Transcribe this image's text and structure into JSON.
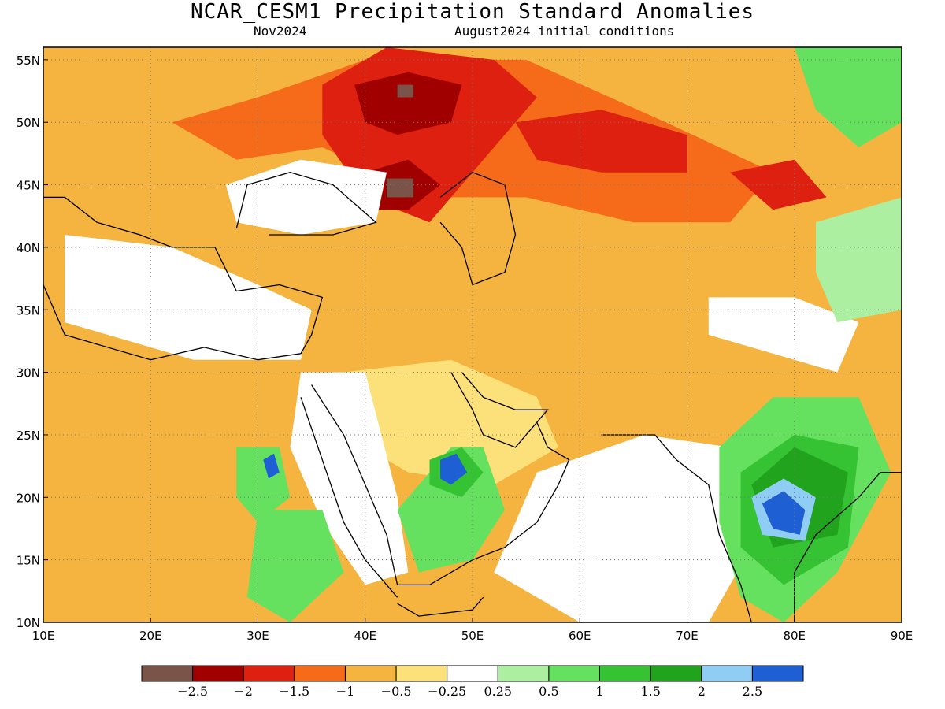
{
  "title": "NCAR_CESM1 Precipitation Standard Anomalies",
  "subtitle_left": "Nov2024",
  "subtitle_right": "August2024 initial conditions",
  "map": {
    "lon_range": [
      10,
      90
    ],
    "lat_range": [
      10,
      56
    ],
    "lon_ticks": [
      {
        "value": 10,
        "label": "10E"
      },
      {
        "value": 20,
        "label": "20E"
      },
      {
        "value": 30,
        "label": "30E"
      },
      {
        "value": 40,
        "label": "40E"
      },
      {
        "value": 50,
        "label": "50E"
      },
      {
        "value": 60,
        "label": "60E"
      },
      {
        "value": 70,
        "label": "70E"
      },
      {
        "value": 80,
        "label": "80E"
      },
      {
        "value": 90,
        "label": "90E"
      }
    ],
    "lat_ticks": [
      {
        "value": 10,
        "label": "10N"
      },
      {
        "value": 15,
        "label": "15N"
      },
      {
        "value": 20,
        "label": "20N"
      },
      {
        "value": 25,
        "label": "25N"
      },
      {
        "value": 30,
        "label": "30N"
      },
      {
        "value": 35,
        "label": "35N"
      },
      {
        "value": 40,
        "label": "40N"
      },
      {
        "value": 45,
        "label": "45N"
      },
      {
        "value": 50,
        "label": "50N"
      },
      {
        "value": 55,
        "label": "55N"
      }
    ],
    "gridlines": "dotted"
  },
  "anomaly_regions": [
    {
      "name": "northern-dry-band",
      "class": "-1 to -0.5",
      "color": "#f5b440",
      "polygon": [
        [
          10,
          44
        ],
        [
          20,
          47
        ],
        [
          30,
          49
        ],
        [
          40,
          50
        ],
        [
          55,
          50
        ],
        [
          70,
          52
        ],
        [
          82,
          52
        ],
        [
          84,
          44
        ],
        [
          78,
          39
        ],
        [
          70,
          36
        ],
        [
          60,
          33
        ],
        [
          50,
          35
        ],
        [
          42,
          33
        ],
        [
          34,
          34
        ],
        [
          30,
          38
        ],
        [
          24,
          40
        ],
        [
          16,
          42
        ],
        [
          10,
          40
        ]
      ]
    },
    {
      "name": "north-africa-dry",
      "class": "-1 to -0.5",
      "color": "#f5b440",
      "polygon": [
        [
          10,
          32
        ],
        [
          22,
          31
        ],
        [
          32,
          31
        ],
        [
          36,
          27
        ],
        [
          34,
          18
        ],
        [
          30,
          14
        ],
        [
          22,
          12
        ],
        [
          10,
          12
        ]
      ]
    },
    {
      "name": "arabia-dry",
      "class": "-0.5 to -0.25",
      "color": "#fce07a",
      "polygon": [
        [
          38,
          30
        ],
        [
          48,
          31
        ],
        [
          56,
          28
        ],
        [
          58,
          24
        ],
        [
          52,
          21
        ],
        [
          44,
          22
        ],
        [
          40,
          24
        ]
      ]
    },
    {
      "name": "europe-moderate-dry",
      "class": "-1.5 to -1",
      "color": "#f56b1a",
      "polygon": [
        [
          22,
          50
        ],
        [
          30,
          52
        ],
        [
          40,
          55
        ],
        [
          55,
          55
        ],
        [
          68,
          50
        ],
        [
          78,
          46
        ],
        [
          74,
          42
        ],
        [
          65,
          42
        ],
        [
          55,
          44
        ],
        [
          46,
          44
        ],
        [
          36,
          48
        ],
        [
          28,
          47
        ]
      ]
    },
    {
      "name": "russia-strong-dry",
      "class": "-2 to -1.5",
      "color": "#dd2010",
      "polygon": [
        [
          36,
          53
        ],
        [
          42,
          56
        ],
        [
          52,
          55
        ],
        [
          56,
          52
        ],
        [
          52,
          48
        ],
        [
          46,
          42
        ],
        [
          40,
          44
        ],
        [
          36,
          49
        ]
      ]
    },
    {
      "name": "kazakhstan-strong-dry",
      "class": "-2 to -1.5",
      "color": "#dd2010",
      "polygon": [
        [
          54,
          50
        ],
        [
          62,
          51
        ],
        [
          70,
          49
        ],
        [
          70,
          46
        ],
        [
          62,
          46
        ],
        [
          56,
          47
        ]
      ]
    },
    {
      "name": "central-asia-strong-dry",
      "class": "-2 to -1.5",
      "color": "#dd2010",
      "polygon": [
        [
          74,
          46
        ],
        [
          80,
          47
        ],
        [
          83,
          44
        ],
        [
          78,
          43
        ]
      ]
    },
    {
      "name": "russia-very-dry-core",
      "class": "-2.5 to -2",
      "color": "#a00000",
      "polygon": [
        [
          39,
          53
        ],
        [
          44,
          54
        ],
        [
          49,
          53
        ],
        [
          48,
          50
        ],
        [
          43,
          49
        ],
        [
          40,
          50
        ]
      ]
    },
    {
      "name": "caucasus-very-dry",
      "class": "-2.5 to -2",
      "color": "#a00000",
      "polygon": [
        [
          40,
          46
        ],
        [
          44,
          47
        ],
        [
          47,
          45
        ],
        [
          44,
          43
        ],
        [
          41,
          43
        ]
      ]
    },
    {
      "name": "extreme-dry-spot-north",
      "class": "< -2.5",
      "color": "#7a5448",
      "polygon": [
        [
          43,
          53
        ],
        [
          44.5,
          53
        ],
        [
          44.5,
          52
        ],
        [
          43,
          52
        ]
      ]
    },
    {
      "name": "extreme-dry-spot-south",
      "class": "< -2.5",
      "color": "#7a5448",
      "polygon": [
        [
          42,
          45.5
        ],
        [
          44.5,
          45.5
        ],
        [
          44.5,
          44
        ],
        [
          42,
          44
        ]
      ]
    },
    {
      "name": "black-sea-neutral",
      "class": "-0.25 to 0.25",
      "color": "#ffffff",
      "polygon": [
        [
          27,
          45
        ],
        [
          34,
          47
        ],
        [
          42,
          46
        ],
        [
          41,
          42
        ],
        [
          34,
          41
        ],
        [
          28,
          42
        ]
      ]
    },
    {
      "name": "east-africa-neutral",
      "class": "-0.25 to 0.25",
      "color": "#ffffff",
      "polygon": [
        [
          34,
          30
        ],
        [
          40,
          30
        ],
        [
          43,
          20
        ],
        [
          44,
          14
        ],
        [
          40,
          13
        ],
        [
          36,
          18
        ],
        [
          33,
          24
        ]
      ]
    },
    {
      "name": "india-arabian-sea-neutral",
      "class": "-0.25 to 0.25",
      "color": "#ffffff",
      "polygon": [
        [
          56,
          22
        ],
        [
          66,
          25
        ],
        [
          74,
          24
        ],
        [
          76,
          16
        ],
        [
          72,
          10
        ],
        [
          60,
          10
        ],
        [
          52,
          14
        ]
      ]
    },
    {
      "name": "mediterranean-neutral",
      "class": "-0.25 to 0.25",
      "color": "#ffffff",
      "polygon": [
        [
          12,
          41
        ],
        [
          22,
          40
        ],
        [
          30,
          37
        ],
        [
          35,
          35
        ],
        [
          34,
          31
        ],
        [
          24,
          31
        ],
        [
          12,
          34
        ]
      ]
    },
    {
      "name": "himalaya-neutral",
      "class": "-0.25 to 0.25",
      "color": "#ffffff",
      "polygon": [
        [
          72,
          36
        ],
        [
          80,
          36
        ],
        [
          86,
          34
        ],
        [
          84,
          30
        ],
        [
          76,
          32
        ],
        [
          72,
          33
        ]
      ]
    },
    {
      "name": "tibet-wet",
      "class": "0.25 to 0.5",
      "color": "#adefa0",
      "polygon": [
        [
          82,
          42
        ],
        [
          90,
          44
        ],
        [
          90,
          35
        ],
        [
          84,
          34
        ],
        [
          82,
          38
        ]
      ]
    },
    {
      "name": "mongolia-wet",
      "class": "0.5 to 1",
      "color": "#66e05f",
      "polygon": [
        [
          80,
          56
        ],
        [
          90,
          56
        ],
        [
          90,
          50
        ],
        [
          86,
          48
        ],
        [
          82,
          51
        ]
      ]
    },
    {
      "name": "india-wet",
      "class": "0.5 to 1",
      "color": "#66e05f",
      "polygon": [
        [
          73,
          24
        ],
        [
          78,
          28
        ],
        [
          86,
          28
        ],
        [
          89,
          22
        ],
        [
          84,
          14
        ],
        [
          79,
          10
        ],
        [
          75,
          12
        ],
        [
          73,
          18
        ]
      ]
    },
    {
      "name": "arabia-yemen-wet",
      "class": "0.5 to 1",
      "color": "#66e05f",
      "polygon": [
        [
          43,
          19
        ],
        [
          48,
          24
        ],
        [
          51,
          24
        ],
        [
          53,
          19
        ],
        [
          50,
          15
        ],
        [
          45,
          14
        ]
      ]
    },
    {
      "name": "sudan-wet",
      "class": "0.5 to 1",
      "color": "#66e05f",
      "polygon": [
        [
          28,
          24
        ],
        [
          32,
          24
        ],
        [
          33,
          20
        ],
        [
          30,
          18
        ],
        [
          28,
          20
        ]
      ]
    },
    {
      "name": "ethiopia-wet",
      "class": "0.5 to 1",
      "color": "#66e05f",
      "polygon": [
        [
          30,
          19
        ],
        [
          36,
          19
        ],
        [
          38,
          14
        ],
        [
          33,
          10
        ],
        [
          29,
          12
        ]
      ]
    },
    {
      "name": "india-moderate-wet",
      "class": "1 to 1.5",
      "color": "#35c233",
      "polygon": [
        [
          75,
          22
        ],
        [
          80,
          25
        ],
        [
          86,
          24
        ],
        [
          85,
          16
        ],
        [
          79,
          13
        ],
        [
          75,
          16
        ]
      ]
    },
    {
      "name": "arabia-moderate-wet",
      "class": "1 to 1.5",
      "color": "#35c233",
      "polygon": [
        [
          46,
          23
        ],
        [
          49,
          24
        ],
        [
          51,
          22
        ],
        [
          49,
          20
        ],
        [
          46,
          21
        ]
      ]
    },
    {
      "name": "india-strong-wet",
      "class": "1.5 to 2",
      "color": "#22a31e",
      "polygon": [
        [
          76,
          21
        ],
        [
          80,
          24
        ],
        [
          85,
          22
        ],
        [
          84,
          17
        ],
        [
          78,
          16
        ]
      ]
    },
    {
      "name": "india-very-wet",
      "class": "2 to 2.5",
      "color": "#8fcdf5",
      "polygon": [
        [
          76,
          20
        ],
        [
          79,
          21.5
        ],
        [
          82,
          20
        ],
        [
          81,
          16.5
        ],
        [
          77,
          17
        ]
      ]
    },
    {
      "name": "india-extreme-wet",
      "class": "> 2.5",
      "color": "#1f5fd4",
      "polygon": [
        [
          77,
          19.5
        ],
        [
          79,
          20.5
        ],
        [
          81,
          19
        ],
        [
          80.5,
          17
        ],
        [
          78,
          17.5
        ]
      ]
    },
    {
      "name": "arabia-extreme-wet",
      "class": "> 2.5",
      "color": "#1f5fd4",
      "polygon": [
        [
          47,
          23
        ],
        [
          48.5,
          23.5
        ],
        [
          49.5,
          22
        ],
        [
          48,
          21
        ],
        [
          47,
          21.5
        ]
      ]
    },
    {
      "name": "sudan-extreme-wet",
      "class": "> 2.5",
      "color": "#1f5fd4",
      "polygon": [
        [
          30.5,
          23
        ],
        [
          31.5,
          23.5
        ],
        [
          32,
          22
        ],
        [
          31,
          21.5
        ]
      ]
    }
  ],
  "coastlines": [
    {
      "name": "mediterranean-coast",
      "points": [
        [
          10,
          37
        ],
        [
          12,
          33
        ],
        [
          20,
          31
        ],
        [
          25,
          32
        ],
        [
          30,
          31
        ],
        [
          34,
          31.5
        ],
        [
          35,
          33
        ],
        [
          36,
          36
        ],
        [
          32,
          37
        ],
        [
          28,
          36.5
        ],
        [
          26,
          40
        ],
        [
          22,
          40
        ],
        [
          19,
          41
        ],
        [
          15,
          42
        ],
        [
          12,
          44
        ],
        [
          10,
          44
        ]
      ]
    },
    {
      "name": "black-sea-coast",
      "points": [
        [
          28,
          41.5
        ],
        [
          29,
          45
        ],
        [
          33,
          46
        ],
        [
          37,
          45
        ],
        [
          41,
          42
        ],
        [
          37,
          41
        ],
        [
          31,
          41
        ]
      ]
    },
    {
      "name": "caspian-sea-coast",
      "points": [
        [
          47,
          44
        ],
        [
          50,
          46
        ],
        [
          53,
          45
        ],
        [
          54,
          41
        ],
        [
          53,
          38
        ],
        [
          50,
          37
        ],
        [
          49,
          40
        ],
        [
          47,
          42
        ]
      ]
    },
    {
      "name": "red-sea-east-coast",
      "points": [
        [
          35,
          29
        ],
        [
          38,
          25
        ],
        [
          40,
          21
        ],
        [
          42,
          17
        ],
        [
          43,
          13
        ]
      ]
    },
    {
      "name": "red-sea-west-coast",
      "points": [
        [
          34,
          28
        ],
        [
          36,
          23
        ],
        [
          38,
          18
        ],
        [
          40,
          15
        ],
        [
          43,
          12
        ]
      ]
    },
    {
      "name": "arabia-south-coast",
      "points": [
        [
          43,
          13
        ],
        [
          46,
          13
        ],
        [
          50,
          15
        ],
        [
          53,
          16
        ],
        [
          56,
          18
        ],
        [
          58,
          21
        ],
        [
          59,
          23
        ],
        [
          57,
          24
        ],
        [
          56,
          26
        ]
      ]
    },
    {
      "name": "persian-gulf-coast",
      "points": [
        [
          48,
          30
        ],
        [
          50,
          27
        ],
        [
          51,
          25
        ],
        [
          54,
          24
        ],
        [
          56,
          26
        ],
        [
          57,
          27
        ],
        [
          54,
          27
        ],
        [
          51,
          28
        ],
        [
          49,
          30
        ]
      ]
    },
    {
      "name": "india-west-coast",
      "points": [
        [
          62,
          25
        ],
        [
          67,
          25
        ],
        [
          69,
          23
        ],
        [
          72,
          21
        ],
        [
          73,
          17
        ],
        [
          75,
          13
        ],
        [
          76,
          10
        ]
      ]
    },
    {
      "name": "india-east-coast",
      "points": [
        [
          80,
          10
        ],
        [
          80,
          14
        ],
        [
          82,
          17
        ],
        [
          86,
          20
        ],
        [
          88,
          22
        ],
        [
          90,
          22
        ]
      ]
    },
    {
      "name": "horn-of-africa-coast",
      "points": [
        [
          43,
          11.5
        ],
        [
          45,
          10.5
        ],
        [
          50,
          11
        ],
        [
          51,
          12
        ]
      ]
    }
  ],
  "colorbar": {
    "segments": [
      {
        "color": "#7a5448",
        "label": "-2.5"
      },
      {
        "color": "#a00000",
        "label": "-2"
      },
      {
        "color": "#dd2010",
        "label": "-1.5"
      },
      {
        "color": "#f56b1a",
        "label": "-1"
      },
      {
        "color": "#f5b440",
        "label": "-0.5"
      },
      {
        "color": "#fce07a",
        "label": "-0.25"
      },
      {
        "color": "#ffffff",
        "label": "0.25"
      },
      {
        "color": "#adefa0",
        "label": "0.5"
      },
      {
        "color": "#66e05f",
        "label": "1"
      },
      {
        "color": "#35c233",
        "label": "1.5"
      },
      {
        "color": "#22a31e",
        "label": "2"
      },
      {
        "color": "#8fcdf5",
        "label": "2.5"
      },
      {
        "color": "#1f5fd4",
        "label": ""
      }
    ]
  }
}
